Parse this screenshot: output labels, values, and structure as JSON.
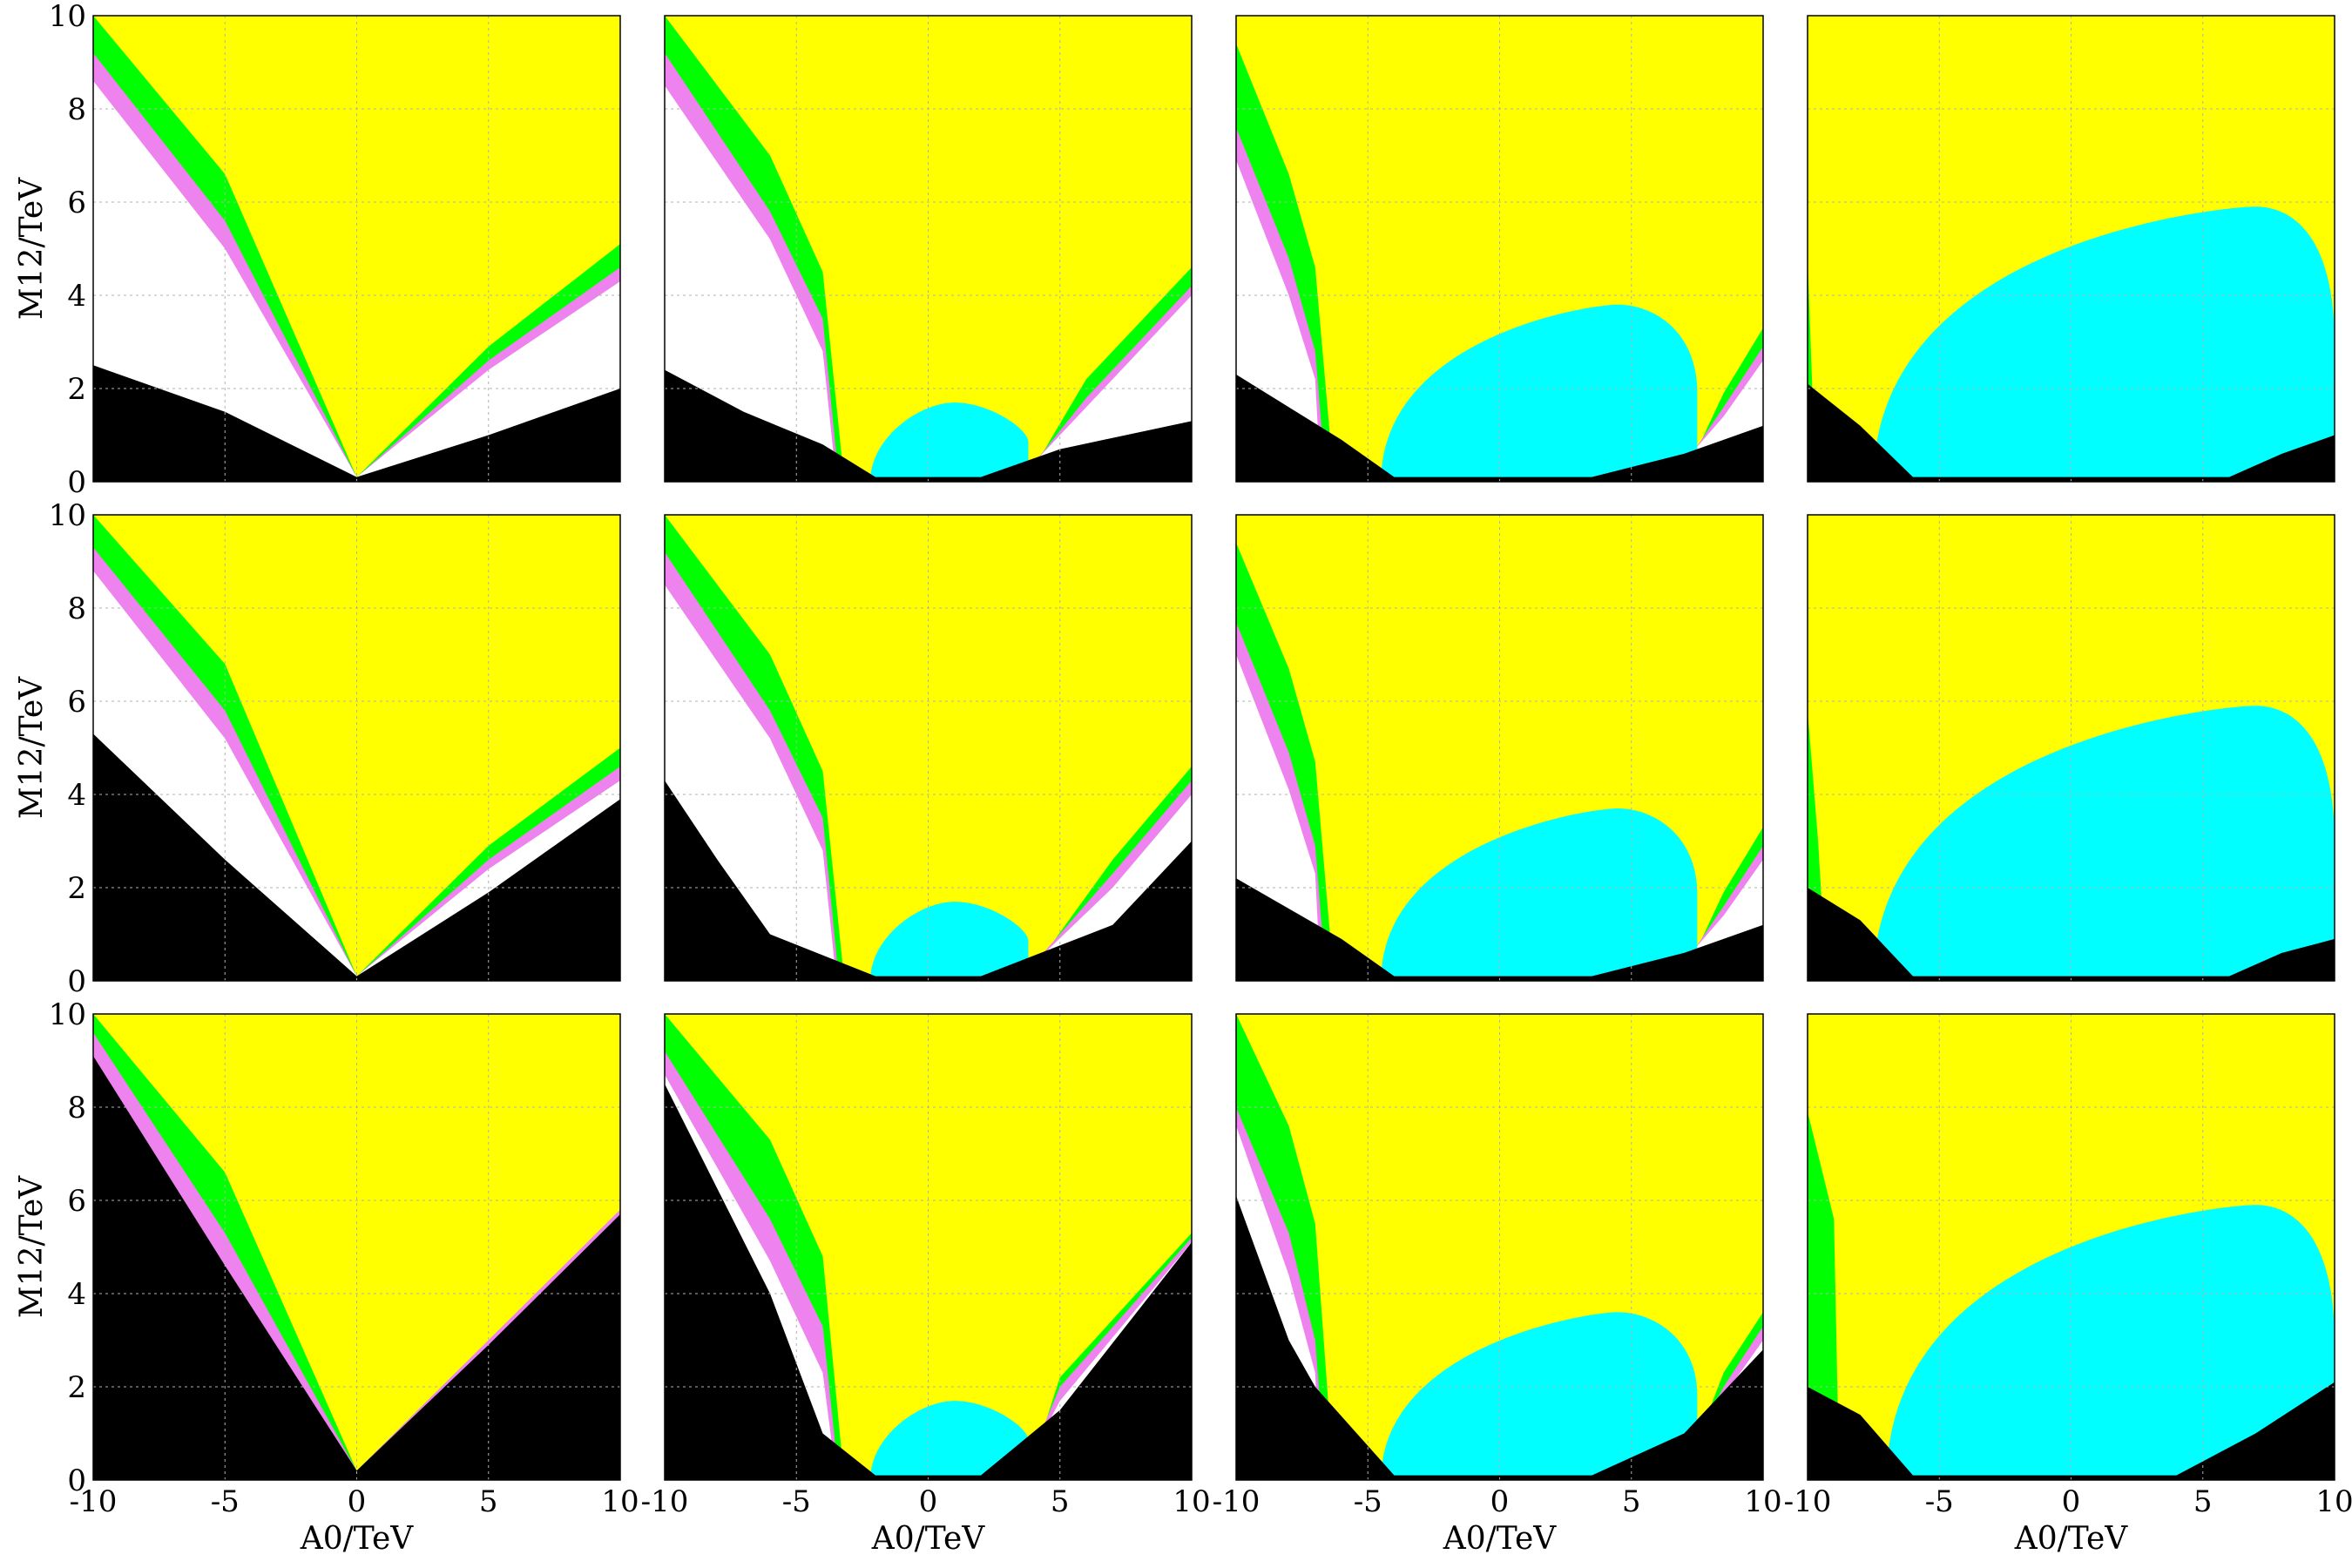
{
  "colors": {
    "background": "#ffff00",
    "excluded": "#000000",
    "allowed": "#ffffff",
    "band_violet": "#ee82ee",
    "band_green": "#00ff00",
    "cyan_region": "#00ffff",
    "grid": "#b0b0b0"
  },
  "axis": {
    "xlabel": "A0/TeV",
    "ylabel": "M12/TeV",
    "xlim": [
      -10,
      10
    ],
    "ylim": [
      0,
      10
    ],
    "xticks": [
      -10,
      -5,
      0,
      5,
      10
    ],
    "yticks": [
      0,
      2,
      4,
      6,
      8,
      10
    ]
  },
  "chart_data": {
    "type": "heatmap",
    "layout": {
      "rows": 3,
      "cols": 4
    },
    "xlabel": "A0/TeV",
    "ylabel": "M12/TeV",
    "xlim": [
      -10,
      10
    ],
    "ylim": [
      0,
      10
    ],
    "grid": true,
    "panels": [
      {
        "row": 0,
        "col": 0,
        "black": [
          [
            -10,
            2.5
          ],
          [
            -5,
            1.5
          ],
          [
            0,
            0.1
          ],
          [
            5,
            1.0
          ],
          [
            10,
            2.0
          ]
        ],
        "white": [
          [
            -10,
            8.6
          ],
          [
            -5,
            5.0
          ],
          [
            0,
            0.1
          ],
          [
            5,
            2.4
          ],
          [
            10,
            4.3
          ]
        ],
        "violet": [
          [
            -10,
            9.2
          ],
          [
            -5,
            5.6
          ],
          [
            0,
            0.1
          ],
          [
            5,
            2.6
          ],
          [
            10,
            4.6
          ]
        ],
        "green": [
          [
            -10,
            10
          ],
          [
            -5,
            6.6
          ],
          [
            0,
            0.1
          ],
          [
            5,
            2.9
          ],
          [
            10,
            5.1
          ]
        ]
      },
      {
        "row": 0,
        "col": 1,
        "black": [
          [
            -10,
            2.4
          ],
          [
            -7,
            1.5
          ],
          [
            -4,
            0.8
          ],
          [
            -2,
            0.1
          ],
          [
            2,
            0.1
          ],
          [
            5,
            0.7
          ],
          [
            10,
            1.3
          ]
        ],
        "white": [
          [
            -10,
            8.5
          ],
          [
            -6,
            5.2
          ],
          [
            -4,
            2.8
          ],
          [
            -3.5,
            0.1
          ],
          [
            3.5,
            0.1
          ],
          [
            6,
            1.6
          ],
          [
            10,
            4.0
          ]
        ],
        "violet": [
          [
            -10,
            9.2
          ],
          [
            -6,
            5.8
          ],
          [
            -4,
            3.5
          ],
          [
            -3.4,
            0.1
          ],
          [
            3.6,
            0.1
          ],
          [
            6,
            1.8
          ],
          [
            10,
            4.2
          ]
        ],
        "green": [
          [
            -10,
            10
          ],
          [
            -6,
            7.0
          ],
          [
            -4,
            4.5
          ],
          [
            -3.2,
            0.1
          ],
          [
            3.8,
            0.1
          ],
          [
            6,
            2.2
          ],
          [
            10,
            4.6
          ]
        ],
        "cyan": {
          "cx": 1.0,
          "left": -2.2,
          "right": 3.8,
          "top": 1.7
        }
      },
      {
        "row": 0,
        "col": 2,
        "black": [
          [
            -10,
            2.3
          ],
          [
            -6,
            0.9
          ],
          [
            -4,
            0.1
          ],
          [
            3.5,
            0.1
          ],
          [
            7,
            0.6
          ],
          [
            10,
            1.2
          ]
        ],
        "white": [
          [
            -10,
            6.9
          ],
          [
            -8,
            4.0
          ],
          [
            -7,
            2.2
          ],
          [
            -6.8,
            0.1
          ],
          [
            6.5,
            0.1
          ],
          [
            8.5,
            1.4
          ],
          [
            10,
            2.6
          ]
        ],
        "violet": [
          [
            -10,
            7.6
          ],
          [
            -8,
            4.8
          ],
          [
            -7,
            2.8
          ],
          [
            -6.6,
            0.1
          ],
          [
            6.7,
            0.1
          ],
          [
            8.5,
            1.6
          ],
          [
            10,
            2.9
          ]
        ],
        "green": [
          [
            -10,
            9.4
          ],
          [
            -8,
            6.6
          ],
          [
            -7,
            4.6
          ],
          [
            -6.3,
            0.1
          ],
          [
            7.0,
            0.1
          ],
          [
            8.5,
            1.9
          ],
          [
            10,
            3.3
          ]
        ],
        "cyan": {
          "cx": 4.5,
          "left": -4.5,
          "right": 7.5,
          "top": 3.8
        }
      },
      {
        "row": 0,
        "col": 3,
        "black": [
          [
            -10,
            2.1
          ],
          [
            -8,
            1.2
          ],
          [
            -6,
            0.1
          ],
          [
            6,
            0.1
          ],
          [
            8,
            0.6
          ],
          [
            10,
            1.0
          ]
        ],
        "white": [],
        "violet": [],
        "green": [
          [
            -10,
            4.8
          ],
          [
            -9.7,
            0.1
          ]
        ],
        "cyan": {
          "cx": 7.0,
          "left": -7.5,
          "right": 10,
          "top": 5.9
        }
      },
      {
        "row": 1,
        "col": 0,
        "black": [
          [
            -10,
            5.3
          ],
          [
            -5,
            2.6
          ],
          [
            0,
            0.1
          ],
          [
            5,
            1.9
          ],
          [
            10,
            3.9
          ]
        ],
        "white": [
          [
            -10,
            8.8
          ],
          [
            -5,
            5.2
          ],
          [
            0,
            0.1
          ],
          [
            5,
            2.4
          ],
          [
            10,
            4.3
          ]
        ],
        "violet": [
          [
            -10,
            9.3
          ],
          [
            -5,
            5.8
          ],
          [
            0,
            0.1
          ],
          [
            5,
            2.6
          ],
          [
            10,
            4.6
          ]
        ],
        "green": [
          [
            -10,
            10
          ],
          [
            -5,
            6.8
          ],
          [
            0,
            0.1
          ],
          [
            5,
            2.9
          ],
          [
            10,
            5.0
          ]
        ]
      },
      {
        "row": 1,
        "col": 1,
        "black": [
          [
            -10,
            4.3
          ],
          [
            -8,
            2.6
          ],
          [
            -6,
            1.0
          ],
          [
            -2,
            0.1
          ],
          [
            2,
            0.1
          ],
          [
            7,
            1.2
          ],
          [
            10,
            3.0
          ]
        ],
        "white": [
          [
            -10,
            8.5
          ],
          [
            -6,
            5.2
          ],
          [
            -4,
            2.8
          ],
          [
            -3.5,
            0.1
          ],
          [
            3.5,
            0.1
          ],
          [
            7,
            2.0
          ],
          [
            10,
            4.0
          ]
        ],
        "violet": [
          [
            -10,
            9.2
          ],
          [
            -6,
            5.8
          ],
          [
            -4,
            3.5
          ],
          [
            -3.4,
            0.1
          ],
          [
            3.6,
            0.1
          ],
          [
            7,
            2.3
          ],
          [
            10,
            4.3
          ]
        ],
        "green": [
          [
            -10,
            10
          ],
          [
            -6,
            7.0
          ],
          [
            -4,
            4.5
          ],
          [
            -3.2,
            0.1
          ],
          [
            3.8,
            0.1
          ],
          [
            7,
            2.6
          ],
          [
            10,
            4.6
          ]
        ],
        "cyan": {
          "cx": 1.0,
          "left": -2.2,
          "right": 3.8,
          "top": 1.7
        }
      },
      {
        "row": 1,
        "col": 2,
        "black": [
          [
            -10,
            2.2
          ],
          [
            -6,
            0.9
          ],
          [
            -4,
            0.1
          ],
          [
            3.5,
            0.1
          ],
          [
            7,
            0.6
          ],
          [
            10,
            1.2
          ]
        ],
        "white": [
          [
            -10,
            7.0
          ],
          [
            -8,
            4.1
          ],
          [
            -7,
            2.3
          ],
          [
            -6.8,
            0.1
          ],
          [
            6.5,
            0.1
          ],
          [
            8.5,
            1.4
          ],
          [
            10,
            2.6
          ]
        ],
        "violet": [
          [
            -10,
            7.7
          ],
          [
            -8,
            4.9
          ],
          [
            -7,
            2.9
          ],
          [
            -6.6,
            0.1
          ],
          [
            6.7,
            0.1
          ],
          [
            8.5,
            1.6
          ],
          [
            10,
            2.9
          ]
        ],
        "green": [
          [
            -10,
            9.4
          ],
          [
            -8,
            6.7
          ],
          [
            -7,
            4.7
          ],
          [
            -6.3,
            0.1
          ],
          [
            7.0,
            0.1
          ],
          [
            8.5,
            1.9
          ],
          [
            10,
            3.3
          ]
        ],
        "cyan": {
          "cx": 4.5,
          "left": -4.5,
          "right": 7.5,
          "top": 3.7
        }
      },
      {
        "row": 1,
        "col": 3,
        "black": [
          [
            -10,
            2.0
          ],
          [
            -8,
            1.3
          ],
          [
            -6,
            0.1
          ],
          [
            6,
            0.1
          ],
          [
            8,
            0.6
          ],
          [
            10,
            0.9
          ]
        ],
        "white": [],
        "violet": [],
        "green": [
          [
            -10,
            5.8
          ],
          [
            -9.6,
            3.0
          ],
          [
            -9.3,
            0.1
          ]
        ],
        "cyan": {
          "cx": 7.0,
          "left": -7.5,
          "right": 10,
          "top": 5.9
        }
      },
      {
        "row": 2,
        "col": 0,
        "black": [
          [
            -10,
            9.1
          ],
          [
            -5,
            4.6
          ],
          [
            0,
            0.2
          ],
          [
            5,
            2.9
          ],
          [
            10,
            5.7
          ]
        ],
        "white": [],
        "violet": [
          [
            -10,
            9.6
          ],
          [
            -5,
            5.3
          ],
          [
            0,
            0.2
          ],
          [
            5,
            3.0
          ],
          [
            10,
            5.8
          ]
        ],
        "green": [
          [
            -10,
            10
          ],
          [
            -5,
            6.6
          ],
          [
            0,
            0.2
          ],
          [
            5,
            3.0
          ],
          [
            10,
            5.8
          ]
        ]
      },
      {
        "row": 2,
        "col": 1,
        "black": [
          [
            -10,
            8.5
          ],
          [
            -6,
            4.0
          ],
          [
            -4,
            1.0
          ],
          [
            -2,
            0.1
          ],
          [
            2,
            0.1
          ],
          [
            5,
            1.5
          ],
          [
            10,
            5.1
          ]
        ],
        "white": [
          [
            -10,
            8.7
          ],
          [
            -6,
            4.7
          ],
          [
            -4,
            2.3
          ],
          [
            -3.5,
            0.1
          ],
          [
            3.5,
            0.1
          ],
          [
            5,
            1.7
          ],
          [
            10,
            5.1
          ]
        ],
        "violet": [
          [
            -10,
            9.2
          ],
          [
            -6,
            5.6
          ],
          [
            -4,
            3.3
          ],
          [
            -3.4,
            0.1
          ],
          [
            3.6,
            0.1
          ],
          [
            5,
            2.0
          ],
          [
            10,
            5.2
          ]
        ],
        "green": [
          [
            -10,
            10
          ],
          [
            -6,
            7.3
          ],
          [
            -4,
            4.8
          ],
          [
            -3.2,
            0.1
          ],
          [
            3.8,
            0.1
          ],
          [
            5,
            2.2
          ],
          [
            10,
            5.3
          ]
        ],
        "cyan": {
          "cx": 1.0,
          "left": -2.2,
          "right": 3.8,
          "top": 1.7
        }
      },
      {
        "row": 2,
        "col": 2,
        "black": [
          [
            -10,
            6.1
          ],
          [
            -8,
            3.0
          ],
          [
            -7,
            2.0
          ],
          [
            -4,
            0.1
          ],
          [
            3.5,
            0.1
          ],
          [
            7,
            1.0
          ],
          [
            10,
            2.8
          ]
        ],
        "white": [
          [
            -10,
            7.6
          ],
          [
            -8,
            4.4
          ],
          [
            -7,
            2.3
          ],
          [
            -6.8,
            0.1
          ],
          [
            6.5,
            0.1
          ],
          [
            8.5,
            1.8
          ],
          [
            10,
            3.0
          ]
        ],
        "violet": [
          [
            -10,
            8.0
          ],
          [
            -8,
            5.3
          ],
          [
            -7,
            3.0
          ],
          [
            -6.6,
            0.1
          ],
          [
            6.7,
            0.1
          ],
          [
            8.5,
            2.0
          ],
          [
            10,
            3.3
          ]
        ],
        "green": [
          [
            -10,
            10
          ],
          [
            -8,
            7.6
          ],
          [
            -7,
            5.5
          ],
          [
            -6.3,
            0.1
          ],
          [
            7.0,
            0.1
          ],
          [
            8.5,
            2.3
          ],
          [
            10,
            3.6
          ]
        ],
        "cyan": {
          "cx": 4.5,
          "left": -4.5,
          "right": 7.5,
          "top": 3.6
        }
      },
      {
        "row": 2,
        "col": 3,
        "black": [
          [
            -10,
            2.0
          ],
          [
            -8,
            1.4
          ],
          [
            -6,
            0.1
          ],
          [
            4,
            0.1
          ],
          [
            7,
            1.0
          ],
          [
            10,
            2.1
          ]
        ],
        "white": [],
        "violet": [],
        "green": [
          [
            -10,
            7.9
          ],
          [
            -9,
            5.6
          ],
          [
            -8.8,
            0.1
          ]
        ],
        "cyan": {
          "cx": 7.0,
          "left": -7.0,
          "right": 10,
          "top": 5.9
        }
      }
    ]
  }
}
